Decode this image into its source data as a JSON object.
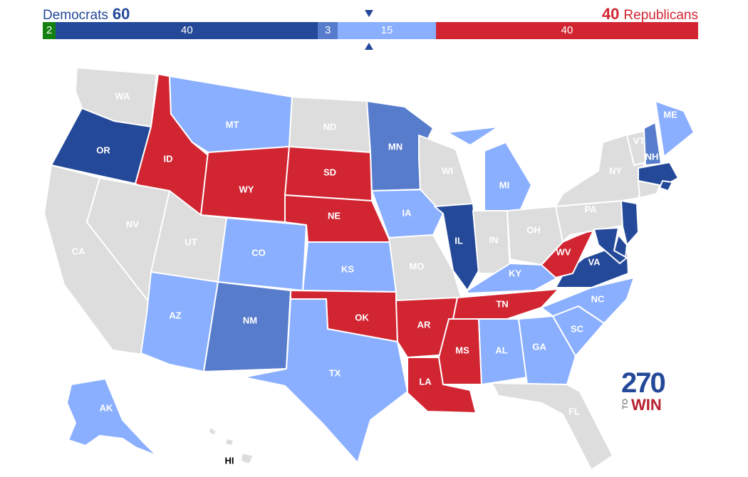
{
  "header": {
    "dem_label": "Democrats",
    "dem_total": "60",
    "rep_total": "40",
    "rep_label": "Republicans"
  },
  "bar": [
    {
      "key": "other",
      "value": 2,
      "label": "2",
      "color": "#138110"
    },
    {
      "key": "safe_dem",
      "value": 40,
      "label": "40",
      "color": "#244999"
    },
    {
      "key": "likely_dem",
      "value": 3,
      "label": "3",
      "color": "#577ccc"
    },
    {
      "key": "leans_dem",
      "value": 15,
      "label": "15",
      "color": "#8aafff"
    },
    {
      "key": "safe_rep",
      "value": 40,
      "label": "40",
      "color": "#d22532"
    }
  ],
  "colors": {
    "safe_dem": "#244999",
    "likely_dem": "#577ccc",
    "leans_dem": "#8aafff",
    "safe_rep": "#d22532",
    "no_race": "#dddddd",
    "other": "#138110"
  },
  "states": [
    {
      "abbr": "WA",
      "status": "no_race"
    },
    {
      "abbr": "OR",
      "status": "safe_dem"
    },
    {
      "abbr": "CA",
      "status": "no_race"
    },
    {
      "abbr": "ID",
      "status": "safe_rep"
    },
    {
      "abbr": "NV",
      "status": "no_race"
    },
    {
      "abbr": "MT",
      "status": "leans_dem"
    },
    {
      "abbr": "WY",
      "status": "safe_rep"
    },
    {
      "abbr": "UT",
      "status": "no_race"
    },
    {
      "abbr": "AZ",
      "status": "leans_dem"
    },
    {
      "abbr": "CO",
      "status": "leans_dem"
    },
    {
      "abbr": "NM",
      "status": "likely_dem"
    },
    {
      "abbr": "ND",
      "status": "no_race"
    },
    {
      "abbr": "SD",
      "status": "safe_rep"
    },
    {
      "abbr": "NE",
      "status": "safe_rep"
    },
    {
      "abbr": "KS",
      "status": "leans_dem"
    },
    {
      "abbr": "OK",
      "status": "safe_rep"
    },
    {
      "abbr": "TX",
      "status": "leans_dem"
    },
    {
      "abbr": "MN",
      "status": "likely_dem"
    },
    {
      "abbr": "IA",
      "status": "leans_dem"
    },
    {
      "abbr": "MO",
      "status": "no_race"
    },
    {
      "abbr": "AR",
      "status": "safe_rep"
    },
    {
      "abbr": "LA",
      "status": "safe_rep"
    },
    {
      "abbr": "WI",
      "status": "no_race"
    },
    {
      "abbr": "IL",
      "status": "safe_dem"
    },
    {
      "abbr": "MI",
      "status": "leans_dem"
    },
    {
      "abbr": "IN",
      "status": "no_race"
    },
    {
      "abbr": "OH",
      "status": "no_race"
    },
    {
      "abbr": "KY",
      "status": "leans_dem"
    },
    {
      "abbr": "TN",
      "status": "safe_rep"
    },
    {
      "abbr": "MS",
      "status": "safe_rep"
    },
    {
      "abbr": "AL",
      "status": "leans_dem"
    },
    {
      "abbr": "GA",
      "status": "leans_dem"
    },
    {
      "abbr": "FL",
      "status": "no_race"
    },
    {
      "abbr": "SC",
      "status": "leans_dem"
    },
    {
      "abbr": "NC",
      "status": "leans_dem"
    },
    {
      "abbr": "VA",
      "status": "safe_dem"
    },
    {
      "abbr": "WV",
      "status": "safe_rep"
    },
    {
      "abbr": "PA",
      "status": "no_race"
    },
    {
      "abbr": "NY",
      "status": "no_race"
    },
    {
      "abbr": "VT",
      "status": "no_race"
    },
    {
      "abbr": "NH",
      "status": "likely_dem"
    },
    {
      "abbr": "ME",
      "status": "leans_dem"
    },
    {
      "abbr": "MA",
      "status": "safe_dem"
    },
    {
      "abbr": "RI",
      "status": "safe_dem"
    },
    {
      "abbr": "CT",
      "status": "no_race"
    },
    {
      "abbr": "NJ",
      "status": "safe_dem"
    },
    {
      "abbr": "DE",
      "status": "safe_dem"
    },
    {
      "abbr": "MD",
      "status": "safe_dem"
    },
    {
      "abbr": "AK",
      "status": "leans_dem"
    },
    {
      "abbr": "HI",
      "status": "no_race"
    }
  ],
  "logo": {
    "number": "270",
    "to": "TO",
    "win": "WIN"
  }
}
